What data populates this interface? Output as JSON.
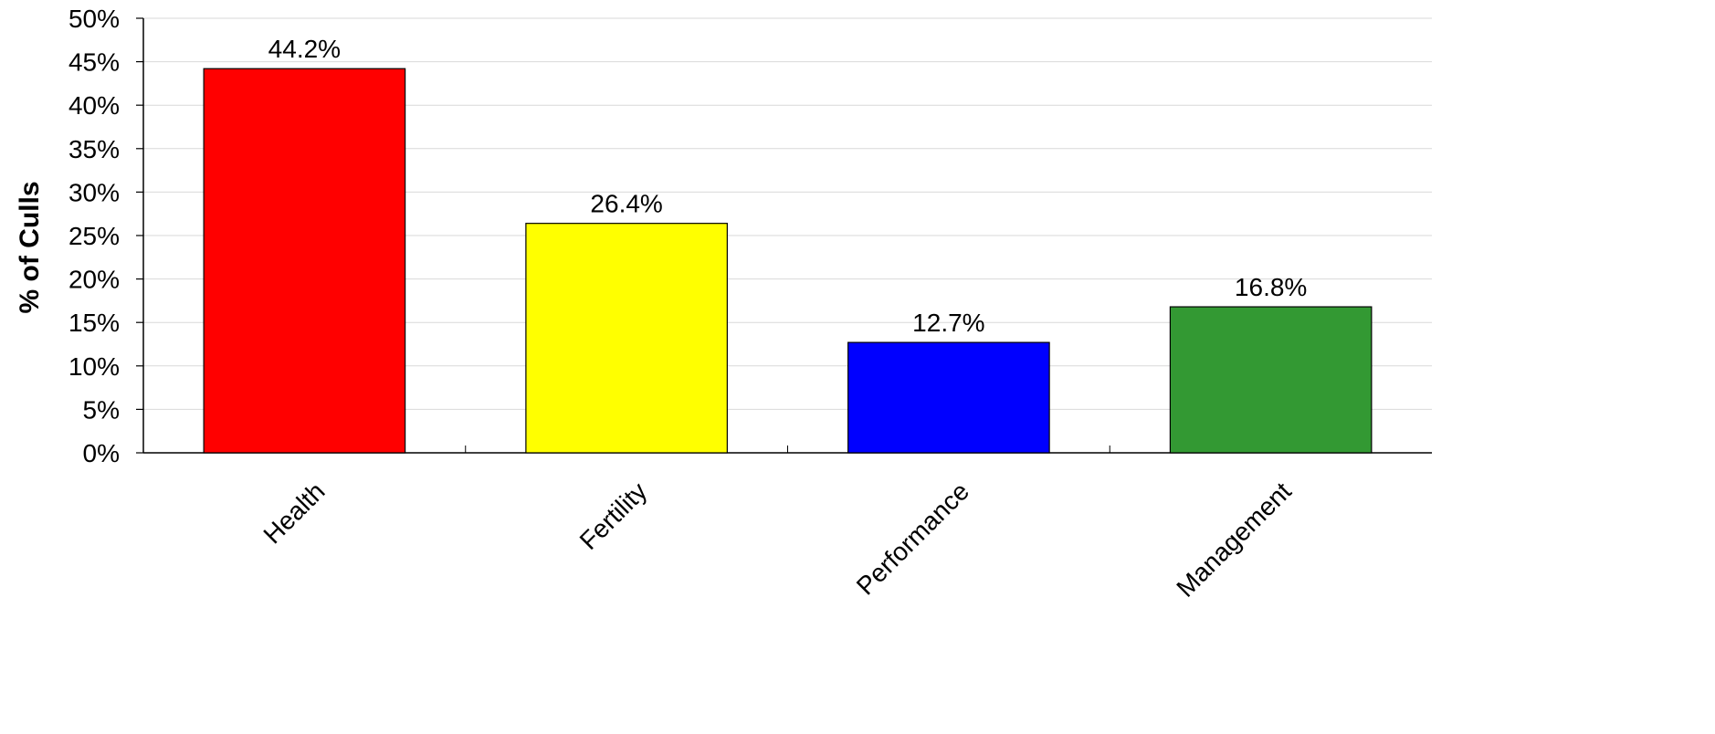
{
  "chart_data": {
    "type": "bar",
    "title": "",
    "xlabel": "",
    "ylabel": "% of Culls",
    "categories": [
      "Health",
      "Fertility",
      "Performance",
      "Management"
    ],
    "values": [
      44.2,
      26.4,
      12.7,
      16.8
    ],
    "value_labels": [
      "44.2%",
      "26.4%",
      "12.7%",
      "16.8%"
    ],
    "colors": [
      "#ff0000",
      "#ffff00",
      "#0000ff",
      "#339933"
    ],
    "ylim": [
      0,
      50
    ],
    "yticks": [
      0,
      5,
      10,
      15,
      20,
      25,
      30,
      35,
      40,
      45,
      50
    ],
    "ytick_labels": [
      "0%",
      "5%",
      "10%",
      "15%",
      "20%",
      "25%",
      "30%",
      "35%",
      "40%",
      "45%",
      "50%"
    ],
    "grid": true,
    "legend": "none"
  }
}
